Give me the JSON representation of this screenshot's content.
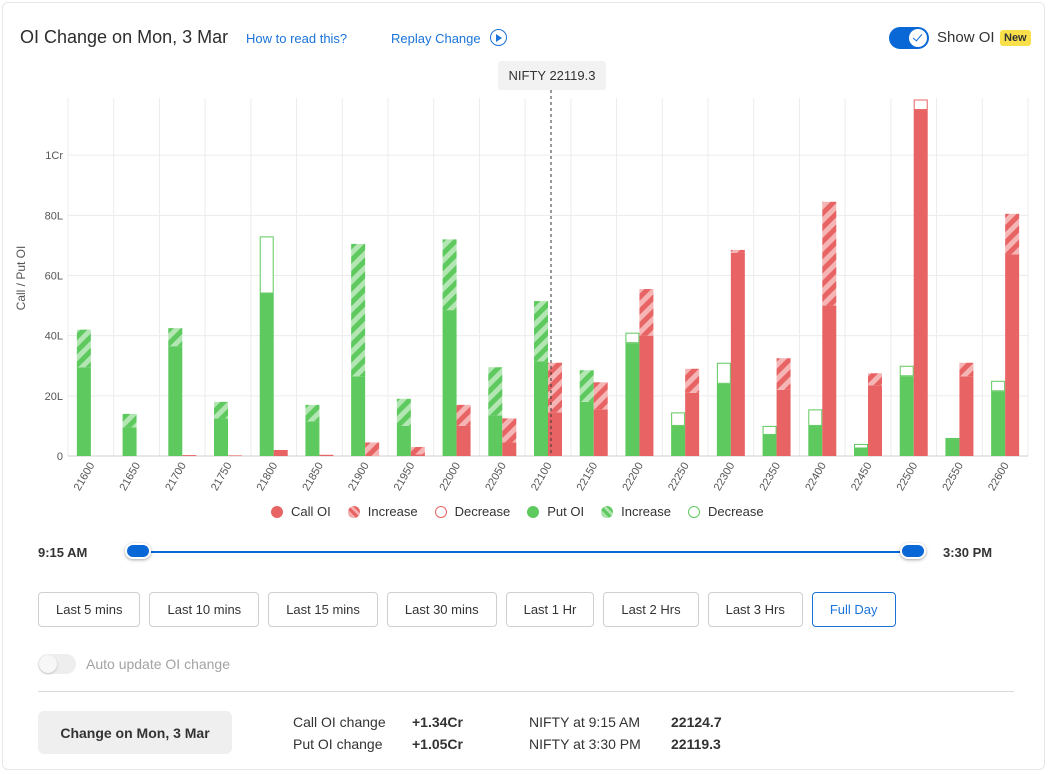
{
  "header": {
    "title": "OI Change on Mon, 3 Mar",
    "how_to_read": "How to read this?",
    "replay": "Replay Change",
    "show_oi": "Show OI",
    "new_badge": "New"
  },
  "tooltip": "NIFTY 22119.3",
  "colors": {
    "call": "#e86464",
    "call_light": "#f5adad",
    "put": "#5ec95e",
    "put_light": "#abe3ab",
    "accent": "#0a67d6"
  },
  "chart_data": {
    "type": "bar",
    "ylabel": "Call / Put OI",
    "ylim": [
      0,
      119
    ],
    "yticks": [
      0,
      20,
      40,
      60,
      80,
      100
    ],
    "ytick_labels": [
      "0",
      "20L",
      "40L",
      "60L",
      "80L",
      "1Cr"
    ],
    "unit": "Lakh",
    "spot_marker": 22119.3,
    "categories": [
      "21600",
      "21650",
      "21700",
      "21750",
      "21800",
      "21850",
      "21900",
      "21950",
      "22000",
      "22050",
      "22100",
      "22150",
      "22200",
      "22250",
      "22300",
      "22350",
      "22400",
      "22450",
      "22500",
      "22550",
      "22600"
    ],
    "series": [
      {
        "name": "Put OI",
        "values": [
          29.5,
          9.5,
          36.5,
          12.5,
          54,
          11.5,
          26.5,
          10,
          48.5,
          13.5,
          31.5,
          18,
          37.5,
          10,
          24,
          7,
          10,
          2.5,
          26.5,
          5.5,
          21.5
        ]
      },
      {
        "name": "Increase",
        "values": [
          12.5,
          4.5,
          6,
          5.5,
          0,
          5.5,
          44,
          9,
          23.5,
          16,
          20,
          10.5,
          0,
          0,
          0,
          0,
          0,
          0,
          0,
          0,
          0
        ]
      },
      {
        "name": "Decrease",
        "values": [
          0,
          0,
          0,
          0,
          19,
          0,
          0,
          0,
          0,
          0,
          0,
          0,
          3.5,
          4.5,
          7,
          3,
          5.5,
          1.5,
          3.5,
          0.5,
          3.5
        ]
      },
      {
        "name": "Call OI",
        "values": [
          0,
          0,
          0.3,
          0.2,
          2,
          0.4,
          0,
          0.5,
          10,
          4.5,
          14.5,
          15.5,
          40,
          21,
          67.5,
          22,
          50,
          23.5,
          115,
          26.5,
          67
        ]
      },
      {
        "name": "Increase",
        "values": [
          0,
          0,
          0,
          0,
          0,
          0,
          4.5,
          2.5,
          7,
          8,
          16.5,
          9,
          15.5,
          8,
          1,
          10.5,
          34.5,
          4,
          0,
          4.5,
          13.5
        ]
      },
      {
        "name": "Decrease",
        "values": [
          0,
          0,
          0,
          0,
          0,
          0,
          0,
          0,
          0,
          0,
          0,
          0,
          0,
          0,
          0,
          0,
          0,
          0,
          3.5,
          0,
          0
        ]
      }
    ]
  },
  "legend": [
    {
      "label": "Call OI",
      "kind": "solid",
      "side": "call"
    },
    {
      "label": "Increase",
      "kind": "hatch",
      "side": "call"
    },
    {
      "label": "Decrease",
      "kind": "outline",
      "side": "call"
    },
    {
      "label": "Put OI",
      "kind": "solid",
      "side": "put"
    },
    {
      "label": "Increase",
      "kind": "hatch",
      "side": "put"
    },
    {
      "label": "Decrease",
      "kind": "outline",
      "side": "put"
    }
  ],
  "slider": {
    "start": "9:15 AM",
    "end": "3:30 PM"
  },
  "ranges": [
    "Last 5 mins",
    "Last 10 mins",
    "Last 15 mins",
    "Last 30 mins",
    "Last 1 Hr",
    "Last 2 Hrs",
    "Last 3 Hrs",
    "Full Day"
  ],
  "active_range": "Full Day",
  "auto_update": "Auto update OI change",
  "footer": {
    "button": "Change on Mon, 3 Mar",
    "call_label": "Call OI change",
    "call_value": "+1.34Cr",
    "put_label": "Put OI change",
    "put_value": "+1.05Cr",
    "start_label": "NIFTY at 9:15 AM",
    "start_value": "22124.7",
    "end_label": "NIFTY at 3:30 PM",
    "end_value": "22119.3"
  }
}
